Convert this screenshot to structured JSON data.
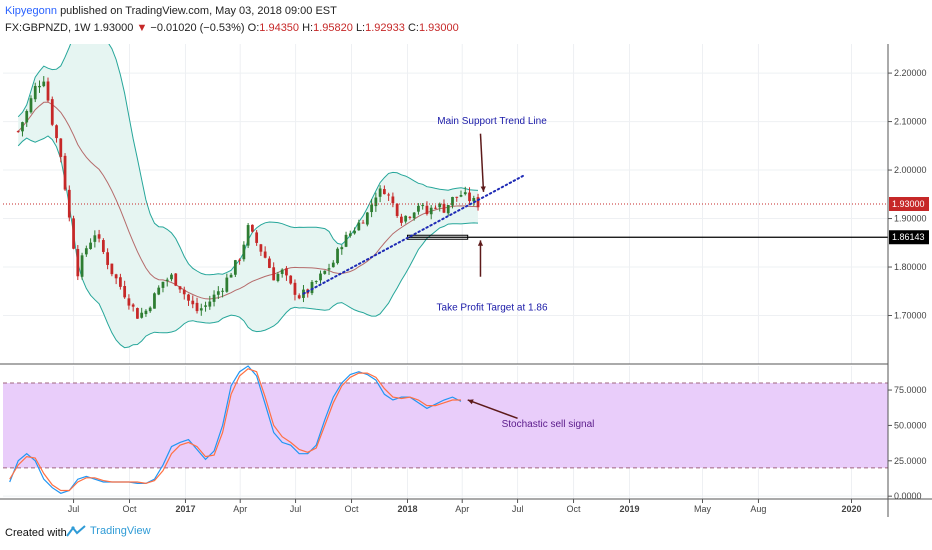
{
  "header": {
    "author": "Kipyegonn",
    "published_text": "published on TradingView.com, May 03, 2018 09:00 EST",
    "symbol": "FX:GBPNZD, 1W",
    "price": "1.93000",
    "change_arrow": "▼",
    "change": "−0.01020 (−0.53%)",
    "o_label": "O:",
    "o_value": "1.94350",
    "h_label": "H:",
    "h_value": "1.95820",
    "l_label": "L:",
    "l_value": "1.92933",
    "c_label": "C:",
    "c_value": "1.93000"
  },
  "footer": {
    "created_with": "Created with",
    "brand": "TradingView"
  },
  "colors": {
    "bull": "#2e7d32",
    "bear": "#c62828",
    "bollinger": "#26a69a",
    "band_fill": "#e6f5f2",
    "basis": "#b56b6b",
    "stoch_k": "#2196f3",
    "stoch_d": "#ff7043",
    "stoch_fill": "#e9cdfa",
    "trendline": "#1e2ab5",
    "annotation": "#1a1aa8",
    "arrow": "#5d1a1a"
  },
  "chart_data": [
    {
      "type": "candlestick",
      "symbol": "FX:GBPNZD",
      "interval": "1W",
      "y_axis_ticks": [
        "2.20000",
        "2.10000",
        "2.00000",
        "1.90000",
        "1.80000",
        "1.70000"
      ],
      "y_axis_values": [
        2.2,
        2.1,
        2.0,
        1.9,
        1.8,
        1.7
      ],
      "ylim": [
        1.6,
        2.26
      ],
      "x_axis_ticks": [
        "Jul",
        "Oct",
        "2017",
        "Apr",
        "Jul",
        "Oct",
        "2018",
        "Apr",
        "Jul",
        "Oct",
        "2019",
        "May",
        "Aug",
        "2020"
      ],
      "last_price_label": "1.93000",
      "horizontal_line_label": "1.86143",
      "horizontal_line_value": 1.86143,
      "indicators": [
        "Bollinger Bands",
        "Moving average basis"
      ],
      "series_close": [
        [
          "2016-04-01",
          2.08
        ],
        [
          "2016-04-15",
          2.12
        ],
        [
          "2016-04-29",
          2.17
        ],
        [
          "2016-05-13",
          2.19
        ],
        [
          "2016-05-27",
          2.1
        ],
        [
          "2016-06-10",
          2.03
        ],
        [
          "2016-06-24",
          1.9
        ],
        [
          "2016-07-08",
          1.79
        ],
        [
          "2016-07-22",
          1.84
        ],
        [
          "2016-08-05",
          1.87
        ],
        [
          "2016-08-19",
          1.83
        ],
        [
          "2016-09-02",
          1.79
        ],
        [
          "2016-09-16",
          1.76
        ],
        [
          "2016-09-30",
          1.73
        ],
        [
          "2016-10-14",
          1.7
        ],
        [
          "2016-10-28",
          1.71
        ],
        [
          "2016-11-11",
          1.74
        ],
        [
          "2016-11-25",
          1.77
        ],
        [
          "2016-12-09",
          1.78
        ],
        [
          "2016-12-23",
          1.76
        ],
        [
          "2017-01-06",
          1.73
        ],
        [
          "2017-01-20",
          1.71
        ],
        [
          "2017-02-03",
          1.72
        ],
        [
          "2017-02-17",
          1.74
        ],
        [
          "2017-03-03",
          1.76
        ],
        [
          "2017-03-17",
          1.79
        ],
        [
          "2017-03-31",
          1.82
        ],
        [
          "2017-04-14",
          1.88
        ],
        [
          "2017-04-28",
          1.85
        ],
        [
          "2017-05-12",
          1.82
        ],
        [
          "2017-05-26",
          1.78
        ],
        [
          "2017-06-09",
          1.79
        ],
        [
          "2017-06-23",
          1.76
        ],
        [
          "2017-07-07",
          1.74
        ],
        [
          "2017-07-21",
          1.75
        ],
        [
          "2017-08-04",
          1.77
        ],
        [
          "2017-08-18",
          1.79
        ],
        [
          "2017-09-01",
          1.81
        ],
        [
          "2017-09-15",
          1.85
        ],
        [
          "2017-09-29",
          1.87
        ],
        [
          "2017-10-13",
          1.89
        ],
        [
          "2017-10-27",
          1.91
        ],
        [
          "2017-11-10",
          1.95
        ],
        [
          "2017-11-24",
          1.96
        ],
        [
          "2017-12-08",
          1.93
        ],
        [
          "2017-12-22",
          1.9
        ],
        [
          "2018-01-05",
          1.91
        ],
        [
          "2018-01-19",
          1.93
        ],
        [
          "2018-02-02",
          1.91
        ],
        [
          "2018-02-16",
          1.93
        ],
        [
          "2018-03-02",
          1.92
        ],
        [
          "2018-03-16",
          1.94
        ],
        [
          "2018-03-30",
          1.95
        ],
        [
          "2018-04-13",
          1.94
        ],
        [
          "2018-04-27",
          1.93
        ]
      ],
      "trendline": {
        "from": [
          "2017-07-14",
          1.745
        ],
        "to": [
          "2018-07-13",
          1.99
        ],
        "label": "Main Support Trend Line"
      },
      "annotations": [
        {
          "text": "Main Support Trend Line"
        },
        {
          "text": "Take Profit Target at 1.86"
        }
      ]
    },
    {
      "type": "line",
      "indicator": "Stochastic",
      "y_axis_ticks": [
        "75.0000",
        "50.0000",
        "25.0000",
        "0.0000"
      ],
      "y_axis_values": [
        75,
        50,
        25,
        0
      ],
      "ylim": [
        -2,
        92
      ],
      "bands": [
        20,
        80
      ],
      "series": [
        {
          "key": "k",
          "values": [
            [
              "2016-03-18",
              10
            ],
            [
              "2016-04-01",
              25
            ],
            [
              "2016-04-15",
              30
            ],
            [
              "2016-04-29",
              25
            ],
            [
              "2016-05-13",
              12
            ],
            [
              "2016-05-27",
              6
            ],
            [
              "2016-06-10",
              2
            ],
            [
              "2016-06-24",
              4
            ],
            [
              "2016-07-08",
              12
            ],
            [
              "2016-07-22",
              14
            ],
            [
              "2016-08-05",
              12
            ],
            [
              "2016-08-19",
              10
            ],
            [
              "2016-09-02",
              10
            ],
            [
              "2016-09-16",
              10
            ],
            [
              "2016-09-30",
              10
            ],
            [
              "2016-10-14",
              9
            ],
            [
              "2016-10-28",
              9
            ],
            [
              "2016-11-11",
              12
            ],
            [
              "2016-11-25",
              22
            ],
            [
              "2016-12-09",
              35
            ],
            [
              "2016-12-23",
              38
            ],
            [
              "2017-01-06",
              40
            ],
            [
              "2017-01-20",
              33
            ],
            [
              "2017-02-03",
              26
            ],
            [
              "2017-02-17",
              32
            ],
            [
              "2017-03-03",
              50
            ],
            [
              "2017-03-17",
              78
            ],
            [
              "2017-03-31",
              88
            ],
            [
              "2017-04-14",
              92
            ],
            [
              "2017-04-28",
              85
            ],
            [
              "2017-05-12",
              65
            ],
            [
              "2017-05-26",
              45
            ],
            [
              "2017-06-09",
              38
            ],
            [
              "2017-06-23",
              36
            ],
            [
              "2017-07-07",
              30
            ],
            [
              "2017-07-21",
              30
            ],
            [
              "2017-08-04",
              36
            ],
            [
              "2017-08-18",
              54
            ],
            [
              "2017-09-01",
              70
            ],
            [
              "2017-09-15",
              80
            ],
            [
              "2017-09-29",
              86
            ],
            [
              "2017-10-13",
              88
            ],
            [
              "2017-10-27",
              86
            ],
            [
              "2017-11-10",
              82
            ],
            [
              "2017-11-24",
              72
            ],
            [
              "2017-12-08",
              68
            ],
            [
              "2017-12-22",
              70
            ],
            [
              "2018-01-05",
              70
            ],
            [
              "2018-01-19",
              66
            ],
            [
              "2018-02-02",
              62
            ],
            [
              "2018-02-16",
              65
            ],
            [
              "2018-03-02",
              68
            ],
            [
              "2018-03-16",
              70
            ],
            [
              "2018-03-30",
              67
            ]
          ]
        },
        {
          "key": "d",
          "values": [
            [
              "2016-03-18",
              12
            ],
            [
              "2016-04-01",
              22
            ],
            [
              "2016-04-15",
              28
            ],
            [
              "2016-04-29",
              27
            ],
            [
              "2016-05-13",
              16
            ],
            [
              "2016-05-27",
              8
            ],
            [
              "2016-06-10",
              4
            ],
            [
              "2016-06-24",
              4
            ],
            [
              "2016-07-08",
              10
            ],
            [
              "2016-07-22",
              13
            ],
            [
              "2016-08-05",
              13
            ],
            [
              "2016-08-19",
              11
            ],
            [
              "2016-09-02",
              10
            ],
            [
              "2016-09-16",
              10
            ],
            [
              "2016-09-30",
              10
            ],
            [
              "2016-10-14",
              10
            ],
            [
              "2016-10-28",
              9
            ],
            [
              "2016-11-11",
              11
            ],
            [
              "2016-11-25",
              18
            ],
            [
              "2016-12-09",
              30
            ],
            [
              "2016-12-23",
              36
            ],
            [
              "2017-01-06",
              38
            ],
            [
              "2017-01-20",
              35
            ],
            [
              "2017-02-03",
              28
            ],
            [
              "2017-02-17",
              29
            ],
            [
              "2017-03-03",
              45
            ],
            [
              "2017-03-17",
              72
            ],
            [
              "2017-03-31",
              85
            ],
            [
              "2017-04-14",
              90
            ],
            [
              "2017-04-28",
              88
            ],
            [
              "2017-05-12",
              70
            ],
            [
              "2017-05-26",
              50
            ],
            [
              "2017-06-09",
              42
            ],
            [
              "2017-06-23",
              38
            ],
            [
              "2017-07-07",
              33
            ],
            [
              "2017-07-21",
              31
            ],
            [
              "2017-08-04",
              34
            ],
            [
              "2017-08-18",
              50
            ],
            [
              "2017-09-01",
              66
            ],
            [
              "2017-09-15",
              78
            ],
            [
              "2017-09-29",
              84
            ],
            [
              "2017-10-13",
              87
            ],
            [
              "2017-10-27",
              87
            ],
            [
              "2017-11-10",
              84
            ],
            [
              "2017-11-24",
              76
            ],
            [
              "2017-12-08",
              70
            ],
            [
              "2017-12-22",
              69
            ],
            [
              "2018-01-05",
              70
            ],
            [
              "2018-01-19",
              68
            ],
            [
              "2018-02-02",
              64
            ],
            [
              "2018-02-16",
              64
            ],
            [
              "2018-03-02",
              66
            ],
            [
              "2018-03-16",
              68
            ],
            [
              "2018-03-30",
              68
            ]
          ]
        }
      ],
      "annotations": [
        {
          "text": "Stochastic sell signal"
        }
      ]
    }
  ]
}
